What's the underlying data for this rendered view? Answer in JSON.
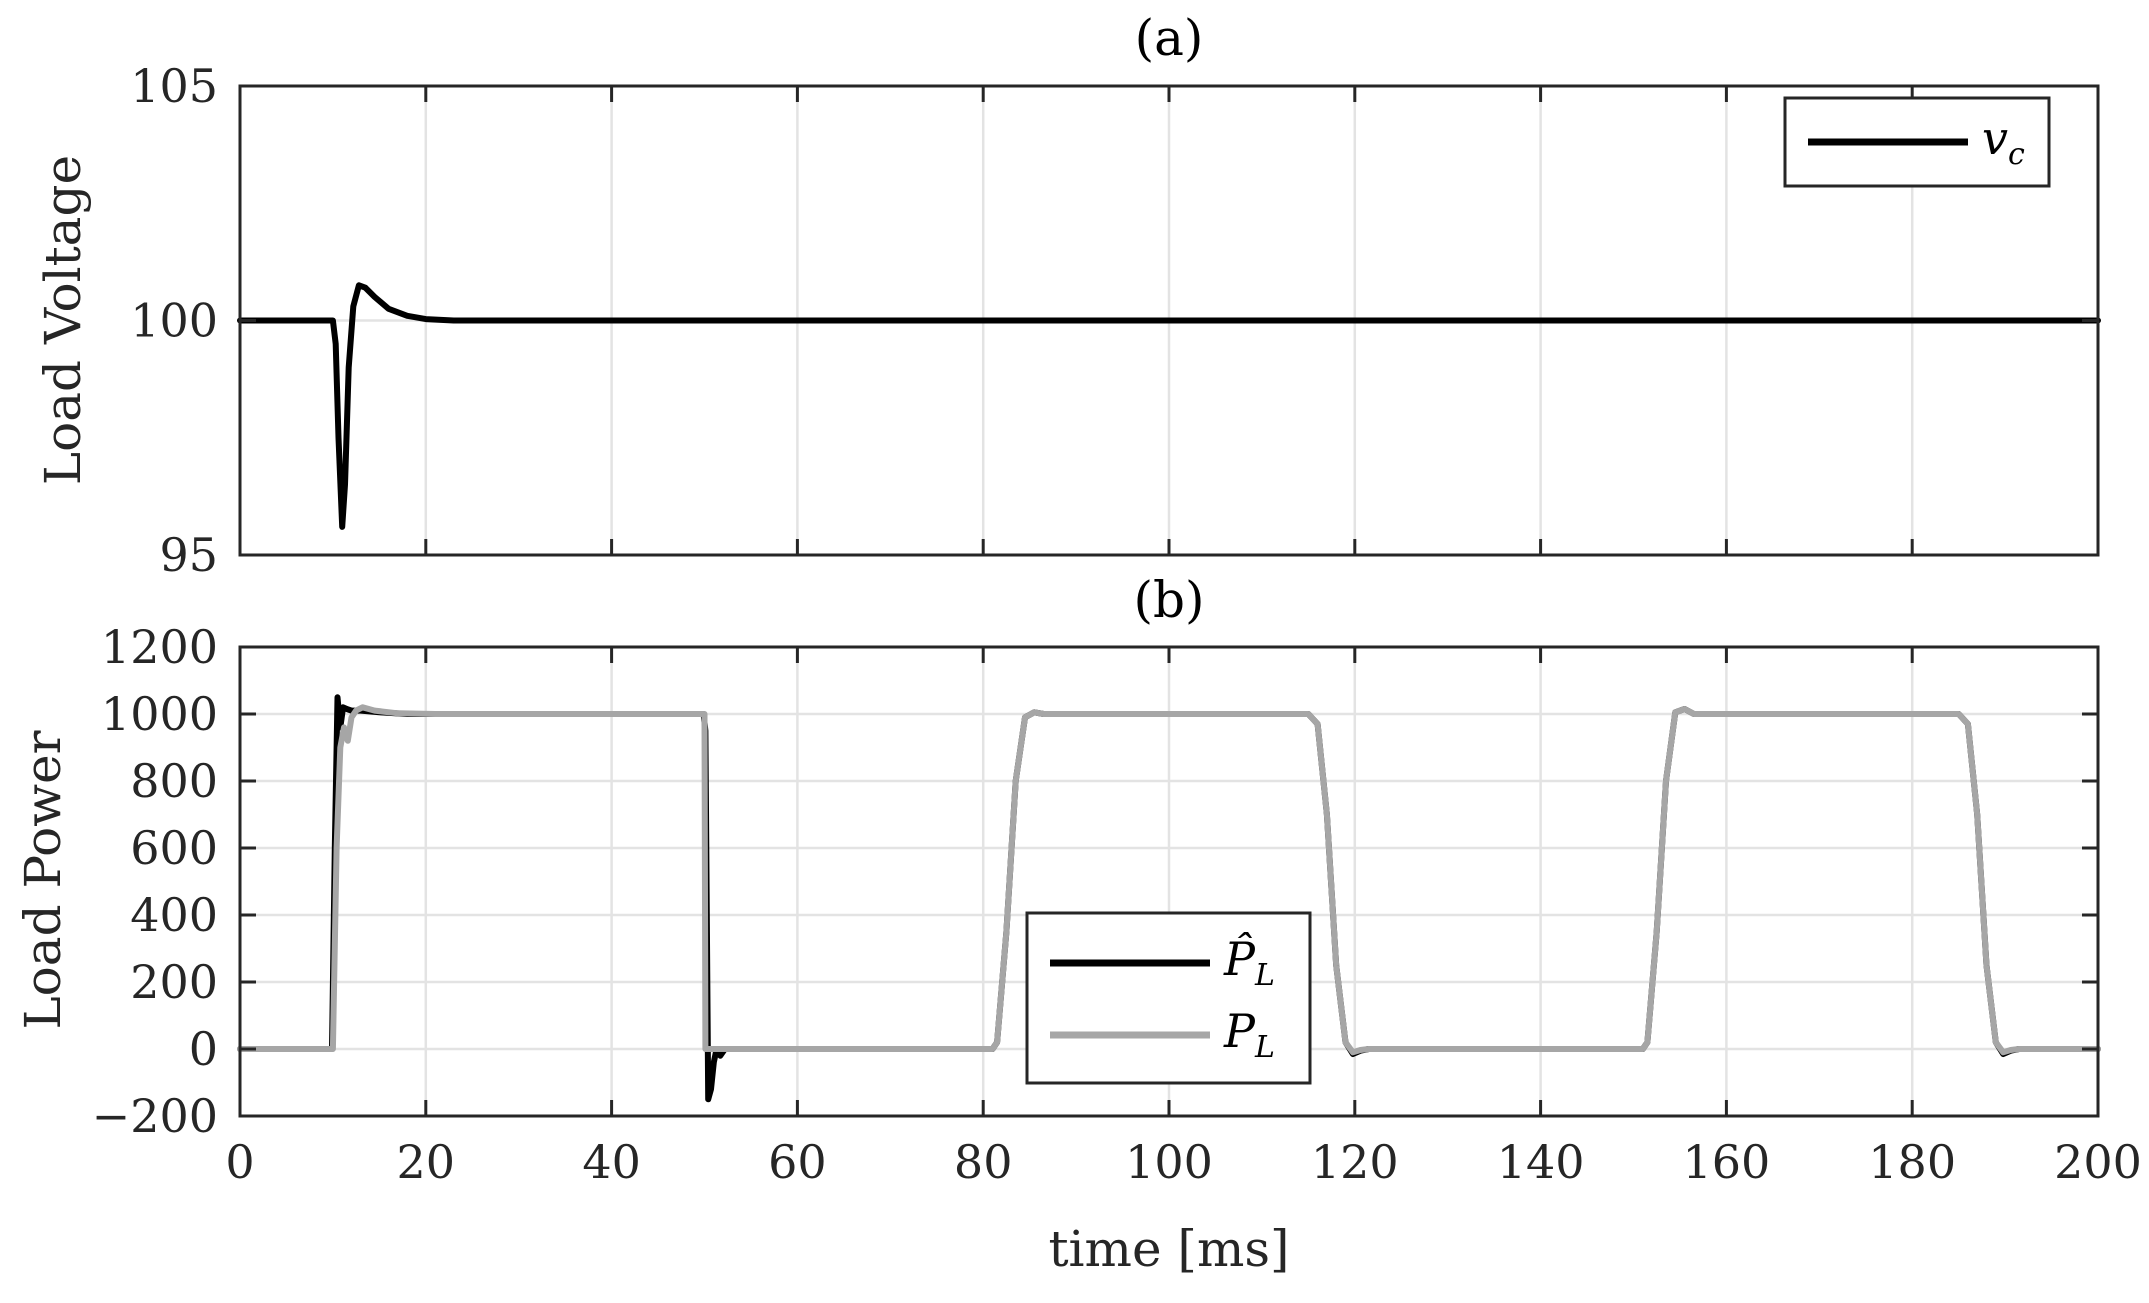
{
  "chart_data": [
    {
      "id": "a",
      "type": "line",
      "title": "(a)",
      "xlabel": "",
      "ylabel": "Load Voltage",
      "xlim": [
        0,
        200
      ],
      "ylim": [
        95,
        105
      ],
      "xticks": [
        0,
        20,
        40,
        60,
        80,
        100,
        120,
        140,
        160,
        180,
        200
      ],
      "xtick_labels_visible": false,
      "yticks": [
        95,
        100,
        105
      ],
      "ytick_labels": [
        "95",
        "100",
        "105"
      ],
      "grid": true,
      "legend_position": "top-right",
      "series": [
        {
          "name": "v_c",
          "legend_label": "v",
          "legend_sub": "c",
          "color": "#000000",
          "x": [
            0,
            10.0,
            10.3,
            10.6,
            11.0,
            11.3,
            11.7,
            12.2,
            12.8,
            13.5,
            14.5,
            16,
            18,
            20,
            23,
            200
          ],
          "y": [
            100,
            100,
            99.5,
            97.5,
            95.6,
            96.5,
            99.0,
            100.3,
            100.75,
            100.7,
            100.5,
            100.25,
            100.1,
            100.03,
            100,
            100
          ]
        }
      ]
    },
    {
      "id": "b",
      "type": "line",
      "title": "(b)",
      "xlabel": "time [ms]",
      "ylabel": "Load Power",
      "xlim": [
        0,
        200
      ],
      "ylim": [
        -200,
        1200
      ],
      "xticks": [
        0,
        20,
        40,
        60,
        80,
        100,
        120,
        140,
        160,
        180,
        200
      ],
      "xtick_labels": [
        "0",
        "20",
        "40",
        "60",
        "80",
        "100",
        "120",
        "140",
        "160",
        "180",
        "200"
      ],
      "yticks": [
        -200,
        0,
        200,
        400,
        600,
        800,
        1000,
        1200
      ],
      "ytick_labels": [
        "−200",
        "0",
        "200",
        "400",
        "600",
        "800",
        "1000",
        "1200"
      ],
      "grid": true,
      "legend_position": "bottom-center",
      "series": [
        {
          "name": "P_L hat",
          "legend_label": "P̂",
          "legend_sub": "L",
          "color": "#000000",
          "x": [
            0,
            9.9,
            10.2,
            10.5,
            10.8,
            11.1,
            11.5,
            12,
            13,
            15,
            18,
            22,
            49.9,
            50.1,
            50.4,
            50.7,
            51.0,
            51.3,
            51.7,
            52.2,
            53,
            81,
            81.5,
            82.5,
            83.5,
            84.5,
            85.5,
            86.5,
            115,
            116.0,
            117.0,
            118.0,
            119.0,
            119.8,
            120.6,
            121.5,
            151,
            151.5,
            152.5,
            153.5,
            154.5,
            155.5,
            156.5,
            185,
            186.0,
            187.0,
            188.0,
            189.0,
            189.8,
            190.6,
            191.5,
            200
          ],
          "y": [
            0,
            0,
            600,
            1050,
            960,
            1020,
            1015,
            1010,
            1010,
            1005,
            1000,
            1000,
            1000,
            950,
            -150,
            -120,
            -40,
            0,
            -20,
            0,
            0,
            0,
            20,
            350,
            800,
            990,
            1005,
            1000,
            1000,
            970,
            700,
            250,
            20,
            -15,
            -5,
            0,
            0,
            20,
            350,
            800,
            1005,
            1015,
            1000,
            1000,
            970,
            700,
            250,
            20,
            -15,
            -5,
            0,
            0
          ]
        },
        {
          "name": "P_L",
          "legend_label": "P",
          "legend_sub": "L",
          "color": "#a6a6a6",
          "x": [
            0,
            10.0,
            10.4,
            10.8,
            11.2,
            11.6,
            12.0,
            12.5,
            13.2,
            14.5,
            17,
            21,
            50.0,
            50.1,
            50.5,
            51,
            81,
            81.5,
            82.5,
            83.5,
            84.5,
            85.5,
            86.5,
            115,
            116.0,
            117.0,
            118.0,
            119.0,
            119.8,
            120.6,
            121.5,
            151,
            151.5,
            152.5,
            153.5,
            154.5,
            155.5,
            156.5,
            185,
            186.0,
            187.0,
            188.0,
            189.0,
            189.8,
            190.6,
            191.5,
            200
          ],
          "y": [
            0,
            0,
            600,
            900,
            960,
            920,
            990,
            1010,
            1020,
            1010,
            1002,
            1000,
            1000,
            0,
            0,
            0,
            0,
            20,
            350,
            800,
            990,
            1005,
            1000,
            1000,
            970,
            700,
            250,
            20,
            -10,
            -3,
            0,
            0,
            20,
            350,
            800,
            1005,
            1015,
            1000,
            1000,
            970,
            700,
            250,
            20,
            -10,
            -3,
            0,
            0
          ]
        }
      ]
    }
  ]
}
